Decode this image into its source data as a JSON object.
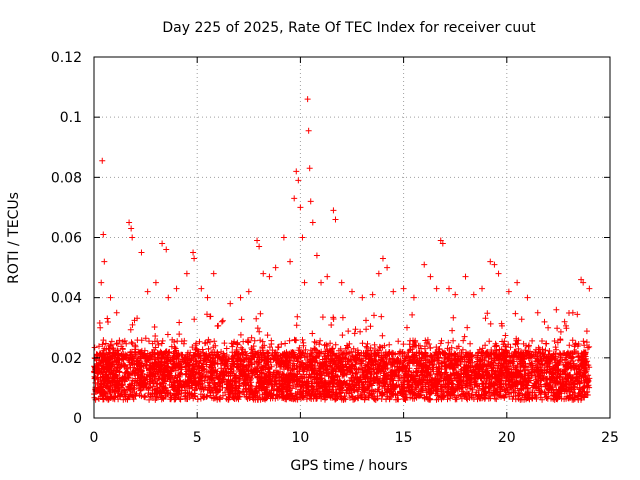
{
  "chart_data": {
    "type": "scatter",
    "title": "Day 225 of 2025, Rate Of TEC Index for receiver cuut",
    "xlabel": "GPS time / hours",
    "ylabel": "ROTI / TECUs",
    "xlim": [
      0,
      25
    ],
    "ylim": [
      0,
      0.12
    ],
    "xticks": [
      "0",
      "5",
      "10",
      "15",
      "20",
      "25"
    ],
    "yticks": [
      "0",
      "0.02",
      "0.04",
      "0.06",
      "0.08",
      "0.1",
      "0.12"
    ],
    "grid": true,
    "marker": "+",
    "color": "#ff0000",
    "series": [
      {
        "x": [
          0.3,
          0.35,
          0.4,
          0.45,
          0.5,
          0.8,
          1.1,
          1.7,
          1.8,
          1.85,
          2.3,
          2.6,
          3.0,
          3.3,
          3.5,
          3.6,
          4.0,
          4.5,
          4.8,
          4.85,
          5.2,
          5.5,
          5.8,
          6.2,
          6.6,
          7.1,
          7.5,
          7.9,
          8.0,
          8.2,
          8.5,
          8.8,
          9.2,
          9.5,
          9.7,
          9.8,
          9.9,
          10.0,
          10.1,
          10.2,
          10.35,
          10.4,
          10.45,
          10.5,
          10.6,
          10.8,
          11.0,
          11.3,
          11.6,
          11.7,
          12.0,
          12.5,
          13.0,
          13.5,
          13.8,
          14.0,
          14.2,
          14.5,
          15.0,
          15.5,
          16.0,
          16.3,
          16.6,
          16.8,
          16.9,
          17.2,
          17.5,
          18.0,
          18.4,
          18.8,
          19.2,
          19.4,
          19.6,
          20.1,
          20.5,
          21.0,
          21.5,
          22.0,
          22.4,
          22.8,
          23.2,
          23.6,
          23.7,
          24.0
        ],
        "y": [
          0.03,
          0.045,
          0.0855,
          0.061,
          0.052,
          0.04,
          0.035,
          0.065,
          0.063,
          0.06,
          0.055,
          0.042,
          0.045,
          0.058,
          0.056,
          0.04,
          0.043,
          0.048,
          0.055,
          0.053,
          0.043,
          0.04,
          0.048,
          0.032,
          0.038,
          0.04,
          0.042,
          0.059,
          0.057,
          0.048,
          0.047,
          0.05,
          0.06,
          0.052,
          0.073,
          0.082,
          0.079,
          0.07,
          0.06,
          0.045,
          0.106,
          0.0955,
          0.083,
          0.072,
          0.065,
          0.054,
          0.045,
          0.047,
          0.069,
          0.066,
          0.045,
          0.042,
          0.04,
          0.041,
          0.048,
          0.053,
          0.05,
          0.042,
          0.043,
          0.04,
          0.051,
          0.047,
          0.043,
          0.059,
          0.058,
          0.043,
          0.041,
          0.047,
          0.041,
          0.043,
          0.052,
          0.051,
          0.048,
          0.042,
          0.045,
          0.04,
          0.035,
          0.03,
          0.036,
          0.032,
          0.035,
          0.046,
          0.045,
          0.043
        ]
      }
    ]
  }
}
